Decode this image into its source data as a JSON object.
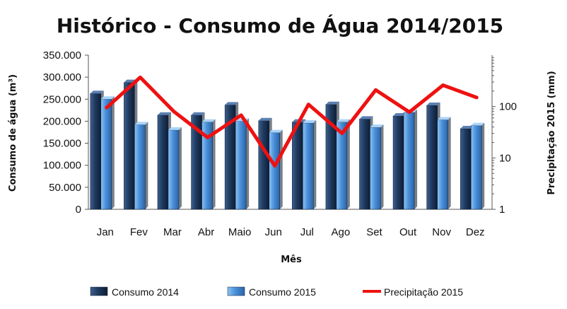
{
  "chart_data": {
    "type": "bar",
    "title": "Histórico - Consumo de Água 2014/2015",
    "xlabel": "Mês",
    "ylabel": "Consumo de água (m³)",
    "y2label": "Precipitação 2015 (mm)",
    "categories": [
      "Jan",
      "Fev",
      "Mar",
      "Abr",
      "Maio",
      "Jun",
      "Jul",
      "Ago",
      "Set",
      "Out",
      "Nov",
      "Dez"
    ],
    "ylim": [
      0,
      350000
    ],
    "yticks": [
      "0",
      "50.000",
      "100.000",
      "150.000",
      "200.000",
      "250.000",
      "300.000",
      "350.000"
    ],
    "y2lim": [
      1,
      1000
    ],
    "y2scale": "log",
    "y2ticks": [
      "1",
      "10",
      "100"
    ],
    "series": [
      {
        "name": "Consumo 2014",
        "type": "bar",
        "axis": "left",
        "color": "#1f3a5f",
        "values": [
          263000,
          288000,
          214000,
          214000,
          237000,
          201000,
          198000,
          238000,
          205000,
          212000,
          236000,
          183000
        ]
      },
      {
        "name": "Consumo 2015",
        "type": "bar",
        "axis": "left",
        "color": "#4a90d9",
        "values": [
          250000,
          192000,
          180000,
          198000,
          200000,
          174000,
          196000,
          198000,
          186000,
          220000,
          203000,
          190000
        ]
      },
      {
        "name": "Precipitação 2015",
        "type": "line",
        "axis": "right",
        "color": "#ee1111",
        "values": [
          95,
          370,
          80,
          25,
          68,
          7,
          110,
          30,
          210,
          78,
          260,
          150
        ]
      }
    ],
    "legend": "bottom",
    "grid": false
  }
}
